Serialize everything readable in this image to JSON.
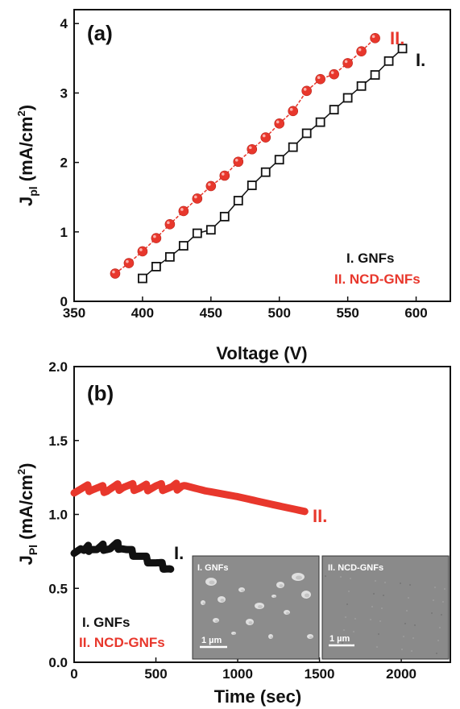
{
  "colors": {
    "series_I": "#111111",
    "series_II": "#e8372c",
    "inset_bg": "#8a8a8a"
  },
  "chart_data": [
    {
      "type": "line",
      "panel_label": "(a)",
      "xlabel": "Voltage (V)",
      "ylabel_main": "J",
      "ylabel_sub": "pl",
      "ylabel_unit": "(mA/cm",
      "ylabel_sup": "2",
      "ylabel_close": ")",
      "xlim": [
        350,
        625
      ],
      "ylim": [
        0,
        4.2
      ],
      "xticks": [
        350,
        400,
        450,
        500,
        550,
        600
      ],
      "yticks": [
        0,
        1,
        2,
        3,
        4
      ],
      "legend": [
        "I. GNFs",
        "II. NCD-GNFs"
      ],
      "series": [
        {
          "name": "I.",
          "marker": "open-square",
          "x": [
            400,
            410,
            420,
            430,
            440,
            450,
            460,
            470,
            480,
            490,
            500,
            510,
            520,
            530,
            540,
            550,
            560,
            570,
            580,
            590
          ],
          "y": [
            0.33,
            0.5,
            0.64,
            0.8,
            0.98,
            1.03,
            1.22,
            1.45,
            1.67,
            1.86,
            2.04,
            2.22,
            2.42,
            2.58,
            2.76,
            2.93,
            3.1,
            3.26,
            3.46,
            3.64
          ]
        },
        {
          "name": "II.",
          "marker": "filled-circle",
          "x": [
            380,
            390,
            400,
            410,
            420,
            430,
            440,
            450,
            460,
            470,
            480,
            490,
            500,
            510,
            520,
            530,
            540,
            550,
            560,
            570
          ],
          "y": [
            0.4,
            0.55,
            0.72,
            0.91,
            1.11,
            1.3,
            1.48,
            1.66,
            1.81,
            2.01,
            2.19,
            2.36,
            2.56,
            2.74,
            3.03,
            3.2,
            3.27,
            3.43,
            3.6,
            3.79
          ]
        }
      ]
    },
    {
      "type": "line",
      "panel_label": "(b)",
      "xlabel": "Time (sec)",
      "ylabel_main": "J",
      "ylabel_sub": "Pl",
      "ylabel_unit": "(mA/cm",
      "ylabel_sup": "2",
      "ylabel_close": ")",
      "xlim": [
        0,
        2300
      ],
      "ylim": [
        0,
        2.0
      ],
      "xticks": [
        0,
        500,
        1000,
        1500,
        2000
      ],
      "yticks": [
        "0.0",
        "0.5",
        "1.0",
        "1.5",
        "2.0"
      ],
      "legend": [
        "I. GNFs",
        "II. NCD-GNFs"
      ],
      "series": [
        {
          "name": "I.",
          "x": [
            0,
            40,
            60,
            100,
            140,
            180,
            220,
            260,
            290,
            320,
            400,
            500,
            590
          ],
          "y": [
            0.76,
            0.77,
            0.75,
            0.78,
            0.76,
            0.78,
            0.77,
            0.79,
            0.78,
            0.76,
            0.72,
            0.67,
            0.63
          ]
        },
        {
          "name": "II.",
          "x": [
            0,
            100,
            200,
            300,
            400,
            500,
            600,
            660,
            800,
            1000,
            1200,
            1410
          ],
          "y": [
            1.17,
            1.18,
            1.17,
            1.19,
            1.18,
            1.19,
            1.18,
            1.2,
            1.16,
            1.12,
            1.07,
            1.02
          ]
        }
      ],
      "insets": [
        {
          "label": "I. GNFs",
          "scale": "1 µm"
        },
        {
          "label": "II. NCD-GNFs",
          "scale": "1 µm"
        }
      ]
    }
  ]
}
